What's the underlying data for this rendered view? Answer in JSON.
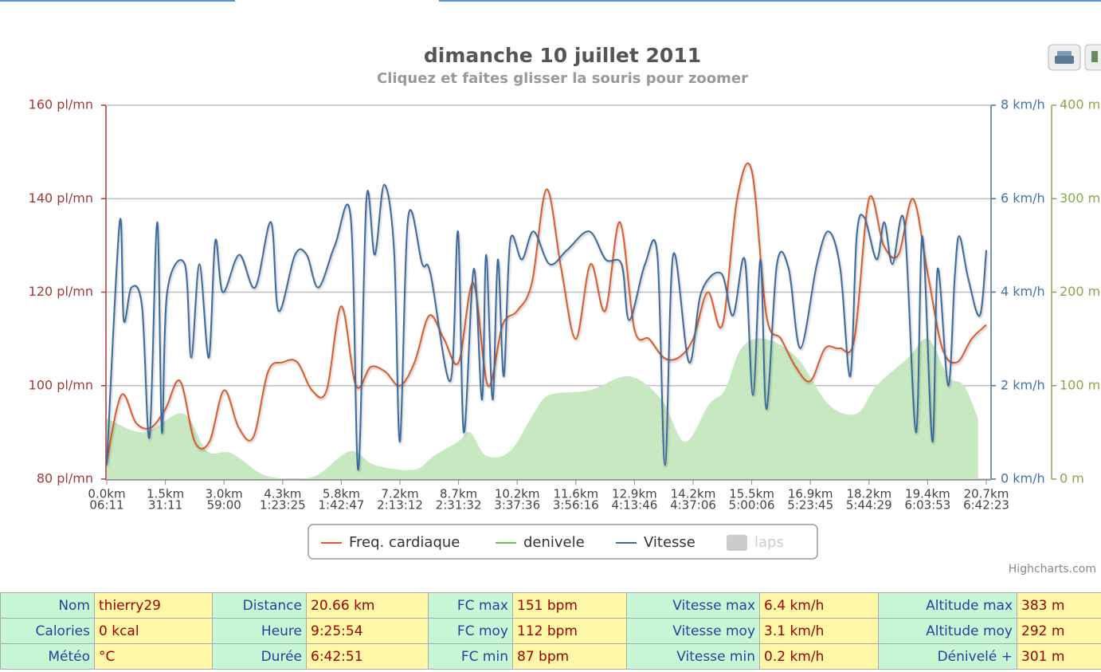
{
  "chart_data": {
    "type": "line",
    "title": "dimanche 10 juillet 2011",
    "subtitle": "Cliquez et faites glisser la souris pour zoomer",
    "credits": "Highcharts.com",
    "xlim": [
      0,
      15
    ],
    "xticks": [
      {
        "value": 0,
        "label": "0.0km"
      },
      {
        "value": 1,
        "label": "1.5km"
      },
      {
        "value": 2,
        "label": "3.0km"
      },
      {
        "value": 3,
        "label": "4.3km"
      },
      {
        "value": 4,
        "label": "5.8km"
      },
      {
        "value": 5,
        "label": "7.2km"
      },
      {
        "value": 6,
        "label": "8.7km"
      },
      {
        "value": 7,
        "label": "10.2km"
      },
      {
        "value": 8,
        "label": "11.6km"
      },
      {
        "value": 9,
        "label": "12.9km"
      },
      {
        "value": 10,
        "label": "14.2km"
      },
      {
        "value": 11,
        "label": "15.5km"
      },
      {
        "value": 12,
        "label": "16.9km"
      },
      {
        "value": 13,
        "label": "18.2km"
      },
      {
        "value": 14,
        "label": "19.4km"
      },
      {
        "value": 15,
        "label": "20.7km"
      }
    ],
    "xtick_times": [
      "06:11",
      "31:11",
      "59:00",
      "1:23:25",
      "1:42:47",
      "2:13:12",
      "2:31:32",
      "3:37:36",
      "3:56:16",
      "4:13:46",
      "4:37:06",
      "5:00:06",
      "5:23:45",
      "5:44:29",
      "6:03:53",
      "6:42:23"
    ],
    "ylim": [
      80,
      160
    ],
    "yticks": [
      {
        "value": 80,
        "label": "80 pl/mn"
      },
      {
        "value": 100,
        "label": "100 pl/mn"
      },
      {
        "value": 120,
        "label": "120 pl/mn"
      },
      {
        "value": 140,
        "label": "140 pl/mn"
      },
      {
        "value": 160,
        "label": "160 pl/mn"
      }
    ],
    "y2lim": [
      0,
      8
    ],
    "y2ticks": [
      {
        "value": 0,
        "label": "0 km/h"
      },
      {
        "value": 2,
        "label": "2 km/h"
      },
      {
        "value": 4,
        "label": "4 km/h"
      },
      {
        "value": 6,
        "label": "6 km/h"
      },
      {
        "value": 8,
        "label": "8 km/h"
      }
    ],
    "y3lim": [
      0,
      400
    ],
    "y3ticks": [
      {
        "value": 0,
        "label": "0 m"
      },
      {
        "value": 100,
        "label": "100 m"
      },
      {
        "value": 200,
        "label": "200 m"
      },
      {
        "value": 300,
        "label": "300 m"
      },
      {
        "value": 400,
        "label": "400 m"
      }
    ],
    "grid": true,
    "series": [
      {
        "name": "Freq. cardiaque",
        "type": "line",
        "color": "#dd5a2a",
        "axis": "y",
        "x": [
          0,
          0.25,
          0.5,
          0.75,
          1,
          1.25,
          1.5,
          1.75,
          2,
          2.25,
          2.5,
          2.75,
          3,
          3.25,
          3.5,
          3.75,
          4,
          4.25,
          4.5,
          4.75,
          5,
          5.25,
          5.5,
          5.75,
          6,
          6.25,
          6.5,
          6.75,
          7,
          7.25,
          7.5,
          7.75,
          8,
          8.25,
          8.5,
          8.75,
          9,
          9.25,
          9.5,
          9.75,
          10,
          10.25,
          10.5,
          10.75,
          11,
          11.25,
          11.5,
          11.75,
          12,
          12.25,
          12.5,
          12.75,
          13,
          13.25,
          13.5,
          13.75,
          14,
          14.25,
          14.5,
          14.75,
          15
        ],
        "values": [
          84,
          98,
          92,
          91,
          95,
          101,
          88,
          88,
          99,
          91,
          89,
          103,
          105,
          105,
          99,
          99,
          117,
          100,
          104,
          103,
          100,
          105,
          115,
          110,
          105,
          122,
          100,
          113,
          116,
          122,
          142,
          125,
          110,
          126,
          116,
          135,
          112,
          110,
          106,
          106,
          110,
          120,
          113,
          140,
          146,
          115,
          110,
          104,
          101,
          108,
          108,
          110,
          140,
          130,
          128,
          140,
          124,
          108,
          105,
          110,
          113
        ]
      },
      {
        "name": "denivele",
        "type": "area",
        "color": "#c7e8c1",
        "axis": "y3",
        "x": [
          0,
          0.63,
          1.3,
          1.71,
          2.12,
          2.66,
          3.21,
          3.61,
          4.16,
          4.57,
          5.24,
          5.58,
          5.99,
          6.2,
          6.47,
          6.88,
          7.28,
          7.55,
          8.23,
          8.91,
          9.46,
          9.86,
          10.27,
          10.54,
          10.82,
          11.22,
          11.77,
          12.31,
          12.79,
          13.13,
          13.67,
          14.01,
          14.35,
          14.62,
          14.86
        ],
        "values": [
          65,
          50,
          70,
          30,
          28,
          5,
          0,
          5,
          30,
          15,
          10,
          25,
          40,
          50,
          25,
          30,
          70,
          90,
          95,
          110,
          85,
          40,
          80,
          95,
          140,
          150,
          130,
          80,
          70,
          100,
          130,
          150,
          110,
          100,
          65
        ]
      },
      {
        "name": "Vitesse",
        "type": "line",
        "color": "#3d6a9e",
        "axis": "y2",
        "x": [
          0,
          0.22,
          0.29,
          0.42,
          0.6,
          0.73,
          0.86,
          0.94,
          1.03,
          1.33,
          1.44,
          1.58,
          1.74,
          1.85,
          1.98,
          2.26,
          2.53,
          2.8,
          2.93,
          3.21,
          3.41,
          3.61,
          3.89,
          4.16,
          4.29,
          4.43,
          4.57,
          4.73,
          4.9,
          5.0,
          5.14,
          5.38,
          5.52,
          5.86,
          5.99,
          6.09,
          6.26,
          6.4,
          6.47,
          6.58,
          6.67,
          6.77,
          6.88,
          7.08,
          7.28,
          7.55,
          7.85,
          8.23,
          8.51,
          8.78,
          8.91,
          9.18,
          9.39,
          9.52,
          9.66,
          9.93,
          10.14,
          10.48,
          10.68,
          10.88,
          11.02,
          11.15,
          11.25,
          11.43,
          11.63,
          11.83,
          12.11,
          12.31,
          12.51,
          12.68,
          12.79,
          12.92,
          13.13,
          13.26,
          13.4,
          13.6,
          13.8,
          13.91,
          14.08,
          14.17,
          14.35,
          14.46,
          14.54,
          14.69,
          14.89,
          15
        ],
        "values": [
          0.3,
          5.5,
          3.4,
          4.1,
          3.7,
          0.9,
          5.5,
          1.0,
          4.0,
          4.6,
          2.6,
          4.6,
          2.6,
          5.1,
          4.0,
          4.8,
          4.1,
          5.5,
          3.6,
          4.8,
          4.8,
          4.1,
          5.0,
          5.6,
          0.2,
          6.0,
          4.8,
          6.3,
          4.9,
          0.8,
          5.6,
          4.6,
          4.4,
          2.1,
          5.3,
          1.0,
          4.5,
          1.7,
          4.8,
          1.7,
          4.7,
          2.2,
          5.1,
          4.7,
          5.3,
          4.6,
          4.9,
          5.3,
          4.7,
          4.6,
          3.4,
          4.6,
          4.8,
          0.3,
          4.8,
          2.5,
          4.0,
          4.4,
          3.5,
          4.7,
          1.8,
          4.7,
          1.5,
          4.6,
          4.5,
          2.8,
          4.6,
          5.3,
          4.5,
          2.2,
          5.2,
          5.6,
          4.7,
          5.5,
          4.6,
          5.5,
          1.0,
          5.2,
          0.8,
          4.5,
          2.0,
          4.3,
          5.2,
          4.3,
          3.5,
          4.9
        ]
      },
      {
        "name": "laps",
        "type": "area",
        "color": "#cccccc",
        "visible": false
      }
    ]
  },
  "table": {
    "rows": [
      [
        "Nom",
        "thierry29",
        "Distance",
        "20.66 km",
        "FC max",
        "151 bpm",
        "Vitesse max",
        "6.4 km/h",
        "Altitude max",
        "383 m"
      ],
      [
        "Calories",
        "0 kcal",
        "Heure",
        "9:25:54",
        "FC moy",
        "112 bpm",
        "Vitesse moy",
        "3.1 km/h",
        "Altitude moy",
        "292 m"
      ],
      [
        "Météo",
        "°C",
        "Durée",
        "6:42:51",
        "FC min",
        "87 bpm",
        "Vitesse min",
        "0.2 km/h",
        "Dénivelé +",
        "301 m"
      ]
    ]
  }
}
